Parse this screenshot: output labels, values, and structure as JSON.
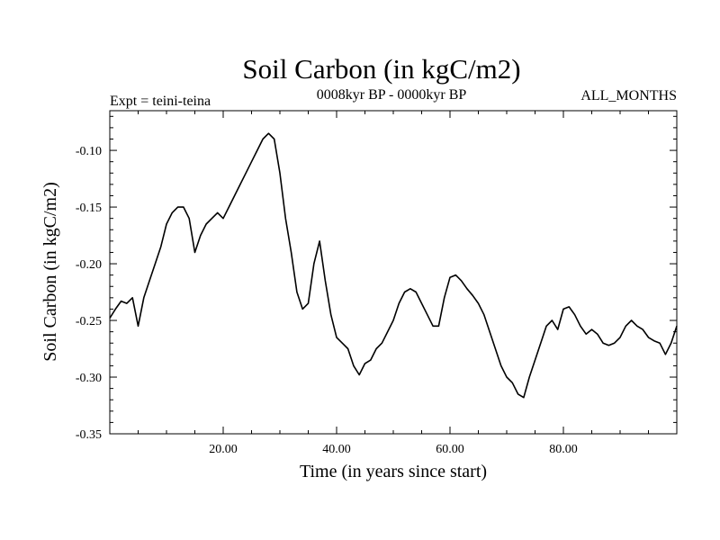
{
  "chart_data": {
    "type": "line",
    "title": "Soil Carbon (in kgC/m2)",
    "subtitle": "0008kyr BP - 0000kyr BP",
    "left_label": "Expt = teini-teina",
    "right_label": "ALL_MONTHS",
    "xlabel": "Time (in years since start)",
    "ylabel": "Soil Carbon (in kgC/m2)",
    "xlim": [
      0,
      100
    ],
    "ylim": [
      -0.35,
      -0.065
    ],
    "x_ticks": [
      20,
      40,
      60,
      80
    ],
    "x_tick_labels": [
      "20.00",
      "40.00",
      "60.00",
      "80.00"
    ],
    "y_ticks": [
      -0.35,
      -0.3,
      -0.25,
      -0.2,
      -0.15,
      -0.1
    ],
    "y_tick_labels": [
      "-0.35",
      "-0.30",
      "-0.25",
      "-0.20",
      "-0.15",
      "-0.10"
    ],
    "series": [
      {
        "name": "Soil Carbon",
        "color": "#000000",
        "x": [
          0,
          1,
          2,
          3,
          4,
          5,
          6,
          7,
          8,
          9,
          10,
          11,
          12,
          13,
          14,
          15,
          16,
          17,
          18,
          19,
          20,
          21,
          22,
          23,
          24,
          25,
          26,
          27,
          28,
          29,
          30,
          31,
          32,
          33,
          34,
          35,
          36,
          37,
          38,
          39,
          40,
          41,
          42,
          43,
          44,
          45,
          46,
          47,
          48,
          49,
          50,
          51,
          52,
          53,
          54,
          55,
          56,
          57,
          58,
          59,
          60,
          61,
          62,
          63,
          64,
          65,
          66,
          67,
          68,
          69,
          70,
          71,
          72,
          73,
          74,
          75,
          76,
          77,
          78,
          79,
          80,
          81,
          82,
          83,
          84,
          85,
          86,
          87,
          88,
          89,
          90,
          91,
          92,
          93,
          94,
          95,
          96,
          97,
          98,
          99,
          100
        ],
        "values": [
          -0.248,
          -0.24,
          -0.233,
          -0.235,
          -0.23,
          -0.255,
          -0.23,
          -0.215,
          -0.2,
          -0.185,
          -0.165,
          -0.155,
          -0.15,
          -0.15,
          -0.16,
          -0.19,
          -0.175,
          -0.165,
          -0.16,
          -0.155,
          -0.16,
          -0.15,
          -0.14,
          -0.13,
          -0.12,
          -0.11,
          -0.1,
          -0.09,
          -0.085,
          -0.09,
          -0.12,
          -0.16,
          -0.19,
          -0.225,
          -0.24,
          -0.235,
          -0.2,
          -0.18,
          -0.215,
          -0.245,
          -0.265,
          -0.27,
          -0.275,
          -0.29,
          -0.298,
          -0.288,
          -0.285,
          -0.275,
          -0.27,
          -0.26,
          -0.25,
          -0.235,
          -0.225,
          -0.222,
          -0.225,
          -0.235,
          -0.245,
          -0.255,
          -0.255,
          -0.23,
          -0.212,
          -0.21,
          -0.215,
          -0.222,
          -0.228,
          -0.235,
          -0.245,
          -0.26,
          -0.275,
          -0.29,
          -0.3,
          -0.305,
          -0.315,
          -0.318,
          -0.3,
          -0.285,
          -0.27,
          -0.255,
          -0.25,
          -0.258,
          -0.24,
          -0.238,
          -0.245,
          -0.255,
          -0.262,
          -0.258,
          -0.262,
          -0.27,
          -0.272,
          -0.27,
          -0.265,
          -0.255,
          -0.25,
          -0.255,
          -0.258,
          -0.265,
          -0.268,
          -0.27,
          -0.28,
          -0.27,
          -0.255
        ]
      }
    ]
  }
}
